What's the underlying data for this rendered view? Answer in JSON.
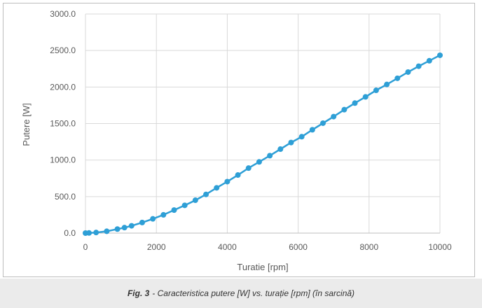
{
  "chart_data": {
    "type": "line",
    "title": "",
    "xlabel": "Turatie [rpm]",
    "ylabel": "Putere [W]",
    "xlim": [
      0,
      10000
    ],
    "ylim": [
      0,
      3000
    ],
    "x_ticks": [
      "0",
      "2000",
      "4000",
      "6000",
      "8000",
      "10000"
    ],
    "y_ticks": [
      "0.0",
      "500.0",
      "1000.0",
      "1500.0",
      "2000.0",
      "2500.0",
      "3000.0"
    ],
    "grid": true,
    "legend": "none",
    "color": "#2e9fd6",
    "series": [
      {
        "x": [
          0,
          100,
          300,
          600,
          900,
          1100,
          1300,
          1600,
          1900,
          2200,
          2500,
          2800,
          3100,
          3400,
          3700,
          4000,
          4300,
          4600,
          4900,
          5200,
          5500,
          5800,
          6100,
          6400,
          6700,
          7000,
          7300,
          7600,
          7900,
          8200,
          8500,
          8800,
          9100,
          9400,
          9700,
          10000
        ],
        "y": [
          0,
          2,
          8,
          25,
          55,
          75,
          100,
          145,
          195,
          250,
          315,
          380,
          450,
          530,
          620,
          705,
          795,
          890,
          975,
          1060,
          1150,
          1240,
          1320,
          1415,
          1505,
          1595,
          1690,
          1780,
          1865,
          1955,
          2035,
          2120,
          2205,
          2285,
          2360,
          2435
        ]
      }
    ]
  },
  "caption": {
    "label": "Fig. 3",
    "text": "- Caracteristica putere [W] vs. turație [rpm] (în sarcină)"
  }
}
